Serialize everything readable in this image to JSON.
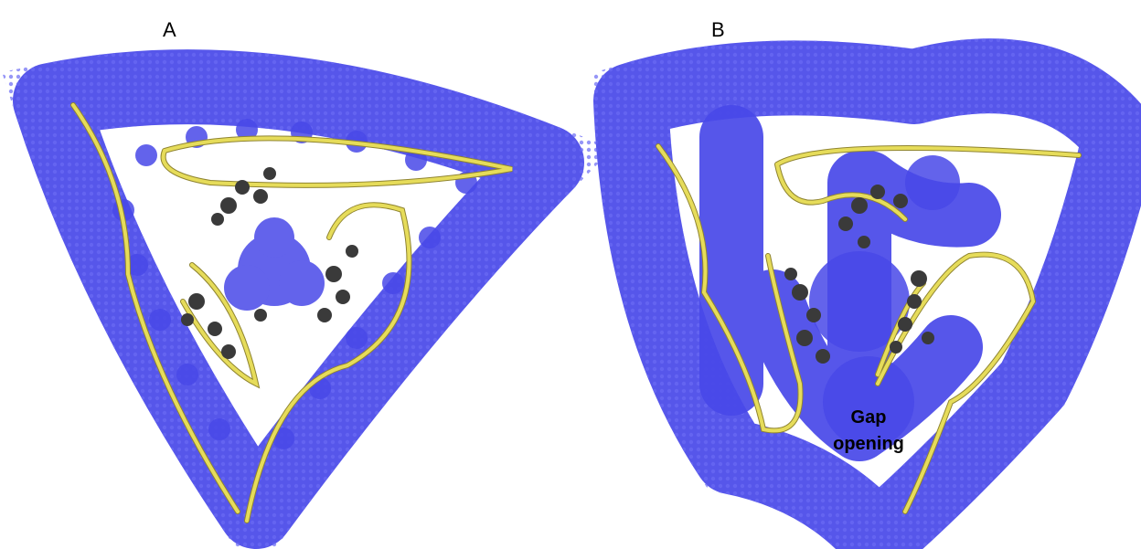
{
  "panels": [
    {
      "label": "A"
    },
    {
      "label": "B",
      "annotation": [
        "Gap",
        "opening"
      ]
    }
  ]
}
